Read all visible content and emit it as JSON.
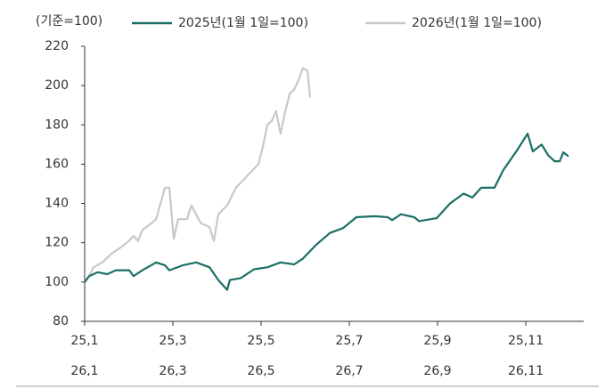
{
  "chart_data": {
    "type": "line",
    "axis_note": "(기준=100)",
    "series": [
      {
        "name": "2025년(1월 1일=100)",
        "color": "#1b6f65",
        "x": [
          0,
          0.1,
          0.3,
          0.51,
          0.71,
          1.01,
          1.11,
          1.31,
          1.62,
          1.82,
          1.92,
          2.22,
          2.53,
          2.83,
          3.03,
          3.23,
          3.29,
          3.54,
          3.84,
          4.14,
          4.44,
          4.75,
          4.95,
          5.25,
          5.56,
          5.86,
          6.16,
          6.57,
          6.87,
          6.97,
          7.17,
          7.47,
          7.58,
          7.98,
          8.28,
          8.59,
          8.79,
          8.99,
          9.29,
          9.49,
          9.8,
          10.04,
          10.16,
          10.36,
          10.51,
          10.65,
          10.77,
          10.85,
          10.97
        ],
        "values": [
          100,
          103,
          105,
          104,
          106,
          106,
          103,
          106,
          110,
          108.5,
          106,
          108.5,
          110,
          107.5,
          101,
          96,
          101,
          102,
          106.5,
          107.5,
          110,
          109,
          112,
          119,
          125,
          127.5,
          133,
          133.5,
          133,
          131.5,
          134.5,
          133,
          131,
          132.5,
          140,
          145,
          143,
          148,
          148,
          157,
          167,
          175.5,
          166.5,
          170,
          164.5,
          161.5,
          161.5,
          166,
          164
        ]
      },
      {
        "name": "2026년(1월 1일=100)",
        "color": "#c8c8c8",
        "x": [
          0,
          0.1,
          0.2,
          0.4,
          0.61,
          0.81,
          1.01,
          1.11,
          1.21,
          1.31,
          1.52,
          1.62,
          1.82,
          1.92,
          2.02,
          2.12,
          2.32,
          2.42,
          2.63,
          2.83,
          2.93,
          3.03,
          3.23,
          3.43,
          3.64,
          3.94,
          4.04,
          4.14,
          4.24,
          4.34,
          4.44,
          4.55,
          4.65,
          4.75,
          4.85,
          4.95,
          5.05,
          5.11
        ],
        "values": [
          100,
          103,
          107.5,
          110,
          114.5,
          117.5,
          121,
          123.5,
          121,
          126.5,
          130,
          132,
          148,
          148,
          122,
          132,
          132,
          139,
          130,
          128,
          121,
          134.5,
          139,
          148,
          153,
          160,
          169,
          180,
          182,
          187,
          175.5,
          187,
          196,
          198,
          203,
          209,
          207.5,
          194
        ]
      }
    ],
    "xlim": [
      0,
      11.6
    ],
    "xticks": [
      {
        "value": 0,
        "label": "25,1"
      },
      {
        "value": 2,
        "label": "25,3"
      },
      {
        "value": 4,
        "label": "25,5"
      },
      {
        "value": 6,
        "label": "25,7"
      },
      {
        "value": 8,
        "label": "25,9"
      },
      {
        "value": 10,
        "label": "25,11"
      }
    ],
    "xticks_row2": [
      {
        "value": 0,
        "label": "26,1"
      },
      {
        "value": 2,
        "label": "26,3"
      },
      {
        "value": 4,
        "label": "26,5"
      },
      {
        "value": 6,
        "label": "26,7"
      },
      {
        "value": 8,
        "label": "26,9"
      },
      {
        "value": 10,
        "label": "26,11"
      }
    ],
    "ylim": [
      80,
      220
    ],
    "yticks": [
      80,
      100,
      120,
      140,
      160,
      180,
      200,
      220
    ],
    "grid": false
  }
}
